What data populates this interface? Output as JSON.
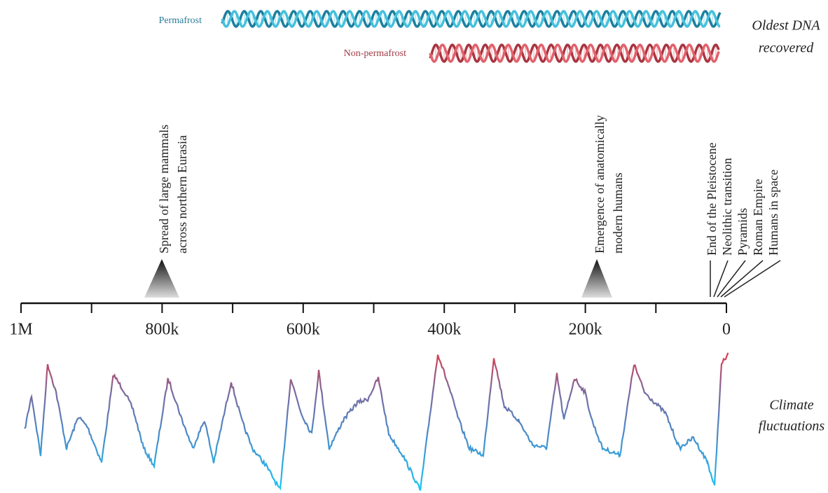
{
  "legend": {
    "permafrost": "Permafrost",
    "non_permafrost": "Non-permafrost",
    "oldest_dna": [
      "Oldest DNA",
      "recovered"
    ]
  },
  "events": [
    {
      "lines": [
        "Spread of large mammals",
        "across northern Eurasia"
      ]
    },
    {
      "lines": [
        "Emergence of anatomically",
        "modern humans"
      ]
    }
  ],
  "recent_events": [
    "End of the Pleistocene",
    "Neolithic transition",
    "Pyramids",
    "Roman Empire",
    "Humans in space"
  ],
  "axis": {
    "labels": [
      "1M",
      "800k",
      "600k",
      "400k",
      "200k",
      "0"
    ]
  },
  "climate": [
    "Climate",
    "fluctuations"
  ]
}
